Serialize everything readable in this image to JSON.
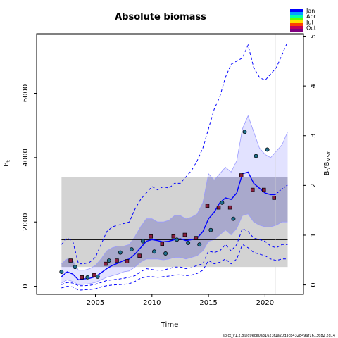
{
  "chart_data": {
    "type": "line",
    "title": "Absolute biomass",
    "xlabel": "Time",
    "ylabel": "B",
    "ylabel_sub": "t",
    "ylabel_right": "B",
    "ylabel_right_sub": "t",
    "ylabel_right_denom": "/B",
    "ylabel_right_denom_sub": "MSY",
    "xlim": [
      1999.8,
      2023.4
    ],
    "ylim": [
      -250,
      7850
    ],
    "y2lim": [
      -0.19,
      5.05
    ],
    "x_ticks": [
      2005,
      2010,
      2015,
      2020
    ],
    "y_ticks": [
      0,
      2000,
      4000,
      6000
    ],
    "y2_ticks": [
      0,
      1,
      2,
      3,
      4,
      5
    ],
    "bmsy": 1450,
    "bmsy_band": {
      "x": [
        2002,
        2022
      ],
      "y": [
        600,
        3400
      ]
    },
    "vline_x": 2020.9,
    "grid": false,
    "legend": {
      "position": "top-right",
      "entries": [
        "Jan",
        "Apr",
        "Jul",
        "Oct"
      ]
    },
    "footer": "spict_v1.2.8@d9ece0a31623f1a20d3cb4328499f1613682 2d14",
    "series": [
      {
        "role": "estimate",
        "x": [
          2002.0,
          2002.5,
          2003.0,
          2003.5,
          2004.0,
          2004.5,
          2005.0,
          2005.5,
          2006.0,
          2006.5,
          2007.0,
          2007.5,
          2008.0,
          2008.5,
          2009.0,
          2009.5,
          2010.0,
          2010.5,
          2011.0,
          2011.5,
          2012.0,
          2012.5,
          2013.0,
          2013.5,
          2014.0,
          2014.5,
          2015.0,
          2015.5,
          2016.0,
          2016.5,
          2017.0,
          2017.5,
          2018.0,
          2018.5,
          2019.0,
          2019.5,
          2020.0,
          2020.5,
          2020.9
        ],
        "y": [
          300,
          450,
          380,
          200,
          230,
          250,
          300,
          420,
          550,
          650,
          720,
          800,
          850,
          1000,
          1200,
          1400,
          1450,
          1420,
          1380,
          1400,
          1450,
          1480,
          1420,
          1450,
          1500,
          1700,
          2100,
          2300,
          2600,
          2750,
          2700,
          2900,
          3500,
          3550,
          3200,
          3050,
          2900,
          2850,
          2850
        ]
      },
      {
        "role": "estimate-forecast",
        "x": [
          2020.9,
          2021.4,
          2022.0
        ],
        "y": [
          2850,
          3000,
          3150
        ]
      },
      {
        "role": "ci-upper",
        "x": [
          2002.0,
          2002.5,
          2003.0,
          2003.5,
          2004.0,
          2004.5,
          2005.0,
          2005.5,
          2006.0,
          2006.5,
          2007.0,
          2007.5,
          2008.0,
          2008.5,
          2009.0,
          2009.5,
          2010.0,
          2010.5,
          2011.0,
          2011.5,
          2012.0,
          2012.5,
          2013.0,
          2013.5,
          2014.0,
          2014.5,
          2015.0,
          2015.5,
          2016.0,
          2016.5,
          2017.0,
          2017.5,
          2018.0,
          2018.5,
          2019.0,
          2019.5,
          2020.0,
          2020.5,
          2021.0,
          2021.5,
          2022.0
        ],
        "y": [
          700,
          850,
          800,
          500,
          500,
          550,
          650,
          850,
          1100,
          1200,
          1250,
          1250,
          1300,
          1550,
          1850,
          2100,
          2100,
          2000,
          2000,
          2050,
          2200,
          2200,
          2100,
          2150,
          2250,
          2600,
          3500,
          3300,
          3500,
          3700,
          3550,
          3900,
          4900,
          5300,
          4800,
          4300,
          4100,
          4000,
          4200,
          4400,
          4800
        ]
      },
      {
        "role": "ci-lower",
        "x": [
          2002.0,
          2002.5,
          2003.0,
          2003.5,
          2004.0,
          2004.5,
          2005.0,
          2005.5,
          2006.0,
          2006.5,
          2007.0,
          2007.5,
          2008.0,
          2008.5,
          2009.0,
          2009.5,
          2010.0,
          2010.5,
          2011.0,
          2011.5,
          2012.0,
          2012.5,
          2013.0,
          2013.5,
          2014.0,
          2014.5,
          2015.0,
          2015.5,
          2016.0,
          2016.5,
          2017.0,
          2017.5,
          2018.0,
          2018.5,
          2019.0,
          2019.5,
          2020.0,
          2020.5,
          2021.0,
          2021.5,
          2022.0
        ],
        "y": [
          100,
          200,
          150,
          50,
          60,
          80,
          120,
          200,
          280,
          330,
          380,
          450,
          480,
          600,
          750,
          850,
          850,
          850,
          820,
          850,
          900,
          900,
          850,
          900,
          950,
          1100,
          1400,
          1450,
          1600,
          1750,
          1600,
          1800,
          2200,
          2250,
          2000,
          1900,
          1850,
          1850,
          1900,
          2000,
          2000
        ]
      },
      {
        "role": "prediction-upper",
        "x": [
          2002.0,
          2002.5,
          2003.0,
          2003.5,
          2004.0,
          2004.5,
          2005.0,
          2005.5,
          2006.0,
          2006.5,
          2007.0,
          2007.5,
          2008.0,
          2008.5,
          2009.0,
          2009.5,
          2010.0,
          2010.5,
          2011.0,
          2011.5,
          2012.0,
          2012.5,
          2013.0,
          2013.5,
          2014.0,
          2014.5,
          2015.0,
          2015.5,
          2016.0,
          2016.5,
          2017.0,
          2017.5,
          2018.0,
          2018.5,
          2019.0,
          2019.5,
          2020.0,
          2020.5,
          2021.0,
          2021.5,
          2022.0
        ],
        "y": [
          1300,
          1500,
          1400,
          700,
          700,
          750,
          900,
          1300,
          1700,
          1850,
          1900,
          1950,
          2000,
          2400,
          2700,
          2900,
          3100,
          3000,
          3100,
          3050,
          3200,
          3200,
          3400,
          3600,
          3900,
          4300,
          4900,
          5500,
          5900,
          6500,
          6900,
          7000,
          7100,
          7500,
          6800,
          6500,
          6400,
          6600,
          6800,
          7200,
          7600
        ]
      },
      {
        "role": "prediction-lower",
        "x": [
          2002.0,
          2002.5,
          2003.0,
          2003.5,
          2004.0,
          2004.5,
          2005.0,
          2005.5,
          2006.0,
          2006.5,
          2007.0,
          2007.5,
          2008.0,
          2008.5,
          2009.0,
          2009.5,
          2010.0,
          2010.5,
          2011.0,
          2011.5,
          2012.0,
          2012.5,
          2013.0,
          2013.5,
          2014.0,
          2014.5,
          2015.0,
          2015.5,
          2016.0,
          2016.5,
          2017.0,
          2017.5,
          2018.0,
          2018.5,
          2019.0,
          2019.5,
          2020.0,
          2020.5,
          2021.0,
          2021.5,
          2022.0
        ],
        "y": [
          50,
          120,
          100,
          20,
          20,
          30,
          60,
          120,
          180,
          200,
          220,
          250,
          280,
          330,
          450,
          550,
          520,
          500,
          500,
          550,
          600,
          600,
          550,
          580,
          650,
          700,
          1100,
          1050,
          1100,
          1300,
          1100,
          1300,
          1800,
          1700,
          1500,
          1450,
          1400,
          1250,
          1200,
          1300,
          1300
        ]
      },
      {
        "role": "ratio-lower-dashed",
        "x": [
          2002.0,
          2002.5,
          2003.0,
          2003.5,
          2004.0,
          2004.5,
          2005.0,
          2005.5,
          2006.0,
          2006.5,
          2007.0,
          2007.5,
          2008.0,
          2008.5,
          2009.0,
          2009.5,
          2010.0,
          2010.5,
          2011.0,
          2011.5,
          2012.0,
          2012.5,
          2013.0,
          2013.5,
          2014.0,
          2014.5,
          2015.0,
          2015.5,
          2016.0,
          2016.5,
          2017.0,
          2017.5,
          2018.0,
          2018.5,
          2019.0,
          2019.5,
          2020.0,
          2020.5,
          2021.0,
          2021.5,
          2022.0
        ],
        "y": [
          -50,
          0,
          -20,
          -120,
          -110,
          -100,
          -80,
          -20,
          20,
          40,
          50,
          60,
          80,
          150,
          250,
          300,
          300,
          280,
          300,
          320,
          350,
          360,
          330,
          350,
          400,
          500,
          800,
          700,
          750,
          850,
          700,
          850,
          1300,
          1200,
          1050,
          1000,
          950,
          850,
          800,
          850,
          850
        ]
      },
      {
        "role": "observations",
        "type": "scatter",
        "x": [
          2002.0,
          2002.8,
          2003.2,
          2003.8,
          2004.3,
          2004.9,
          2005.2,
          2005.9,
          2006.2,
          2006.9,
          2007.2,
          2007.8,
          2008.2,
          2008.9,
          2009.2,
          2009.9,
          2010.2,
          2010.9,
          2011.2,
          2011.9,
          2012.2,
          2012.9,
          2013.2,
          2013.9,
          2014.2,
          2014.9,
          2015.2,
          2015.9,
          2016.2,
          2016.9,
          2017.2,
          2017.9,
          2018.2,
          2018.9,
          2019.2,
          2019.9,
          2020.2,
          2020.8
        ],
        "y": [
          450,
          800,
          600,
          280,
          280,
          350,
          300,
          700,
          800,
          800,
          1050,
          780,
          1150,
          950,
          1400,
          1550,
          1080,
          1320,
          1020,
          1550,
          1450,
          1600,
          1350,
          1500,
          1300,
          2500,
          1750,
          2450,
          2600,
          2450,
          2100,
          3450,
          4800,
          3000,
          4050,
          3000,
          4250,
          2750
        ],
        "month": [
          "Jan",
          "Jul",
          "Jan",
          "Jul",
          "Jan",
          "Jul",
          "Jan",
          "Jul",
          "Jan",
          "Jul",
          "Jan",
          "Jul",
          "Jan",
          "Jul",
          "Jan",
          "Jul",
          "Jan",
          "Jul",
          "Jan",
          "Jul",
          "Jan",
          "Jul",
          "Jan",
          "Jul",
          "Jan",
          "Jul",
          "Jan",
          "Jul",
          "Jan",
          "Jul",
          "Jan",
          "Jul",
          "Jan",
          "Jul",
          "Jan",
          "Jul",
          "Jan",
          "Jul"
        ]
      }
    ],
    "colors": {
      "estimate": "#0000ff",
      "ci_fill": "#d8d8ff",
      "ci_edge": "#9a9aff",
      "band_fill": "#d3d3d3",
      "band_overlap": "#a9a9cc",
      "bmsy_line": "#000000",
      "vline": "#d3d3d3",
      "jan": "#1f6e8c",
      "jul": "#8b1e3f",
      "legend_gradient": [
        "#0000ff",
        "#00a0ff",
        "#00ffaa",
        "#60ff00",
        "#ffe000",
        "#ff4000",
        "#c0005a",
        "#800080"
      ]
    }
  }
}
